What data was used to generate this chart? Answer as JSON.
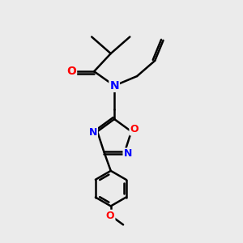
{
  "background_color": "#ebebeb",
  "bond_color": "#000000",
  "atom_colors": {
    "O": "#ff0000",
    "N": "#0000ff",
    "C": "#000000"
  },
  "line_width": 1.8,
  "fig_size": [
    3.0,
    3.0
  ],
  "dpi": 100
}
